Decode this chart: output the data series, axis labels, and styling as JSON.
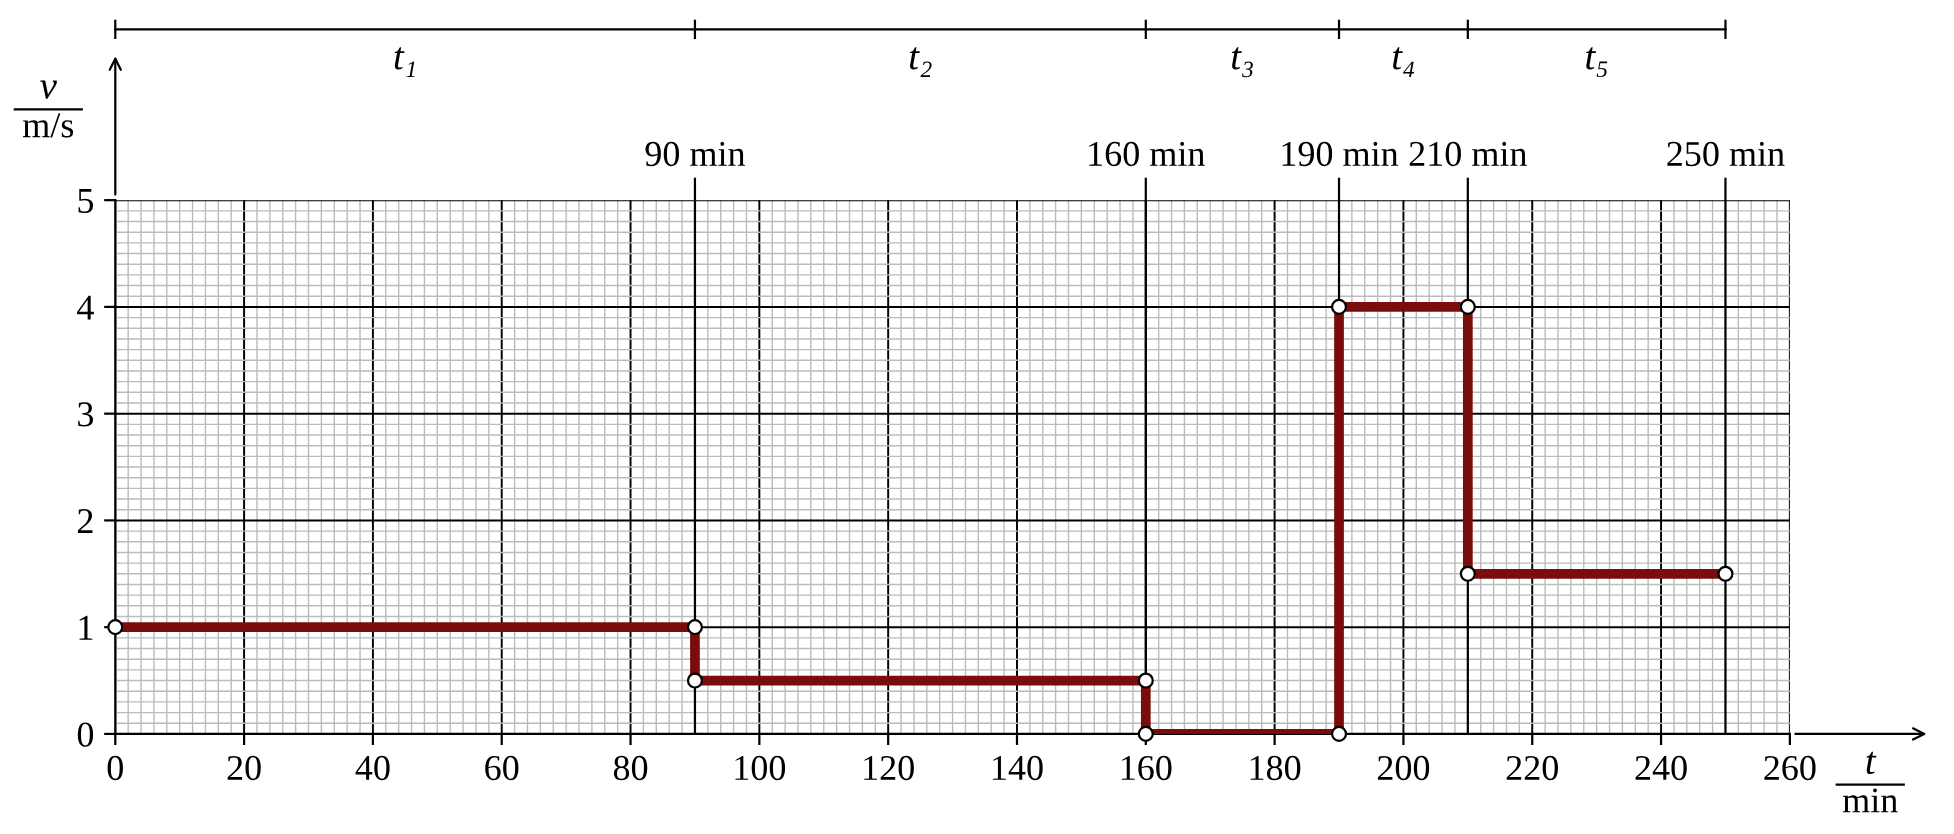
{
  "chart_data": {
    "type": "line",
    "xlabel": "t\nmin",
    "ylabel": "v\nm/s",
    "x": [
      0,
      90,
      90,
      160,
      160,
      190,
      190,
      210,
      210,
      250
    ],
    "series": [
      {
        "color": "#7a0c0c",
        "values": [
          1,
          1,
          0.5,
          0.5,
          0,
          0,
          4,
          4,
          1.5,
          1.5
        ]
      }
    ],
    "xlim": [
      0,
      260
    ],
    "ylim": [
      0,
      5
    ],
    "xticks": [
      0,
      20,
      40,
      60,
      80,
      100,
      120,
      140,
      160,
      180,
      200,
      220,
      240,
      260
    ],
    "yticks": [
      0,
      1,
      2,
      3,
      4,
      5
    ],
    "annotations": [
      "t₁",
      "t₂",
      "t₃",
      "t₄",
      "t₅"
    ],
    "grid": true,
    "marker": "circle",
    "line_style": "solid",
    "ref_lines": [
      {
        "axis": "x",
        "value": 90,
        "label": "90 min"
      },
      {
        "axis": "x",
        "value": 160,
        "label": "160 min"
      },
      {
        "axis": "x",
        "value": 190,
        "label": "190 min"
      },
      {
        "axis": "x",
        "value": 210,
        "label": "210 min"
      },
      {
        "axis": "x",
        "value": 250,
        "label": "250 min"
      }
    ]
  }
}
